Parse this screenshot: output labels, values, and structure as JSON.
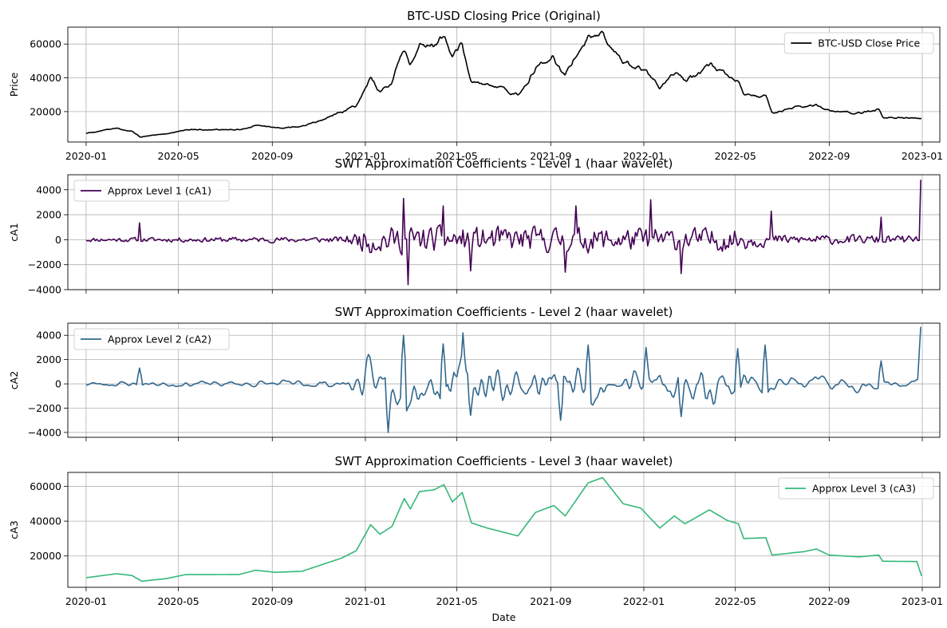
{
  "chart_data": [
    {
      "type": "line",
      "title": "BTC-USD Closing Price (Original)",
      "ylabel": "Price",
      "xlabel": "",
      "ylim": [
        2000,
        70000
      ],
      "yticks": [
        20000,
        40000,
        60000
      ],
      "grid": true,
      "legend_position": "upper-right",
      "series": [
        {
          "name": "BTC-USD Close Price",
          "color": "#000000",
          "kind": "price",
          "keypoints": [
            [
              "2020-01-01",
              7200
            ],
            [
              "2020-02-10",
              10200
            ],
            [
              "2020-03-01",
              8800
            ],
            [
              "2020-03-12",
              5000
            ],
            [
              "2020-04-15",
              7000
            ],
            [
              "2020-05-10",
              9500
            ],
            [
              "2020-06-15",
              9400
            ],
            [
              "2020-07-20",
              9300
            ],
            [
              "2020-08-10",
              11800
            ],
            [
              "2020-09-05",
              10500
            ],
            [
              "2020-10-10",
              11300
            ],
            [
              "2020-11-05",
              15000
            ],
            [
              "2020-12-01",
              19000
            ],
            [
              "2020-12-20",
              23500
            ],
            [
              "2021-01-08",
              40000
            ],
            [
              "2021-01-20",
              32000
            ],
            [
              "2021-02-05",
              38000
            ],
            [
              "2021-02-21",
              57000
            ],
            [
              "2021-03-01",
              47000
            ],
            [
              "2021-03-13",
              61000
            ],
            [
              "2021-04-01",
              59000
            ],
            [
              "2021-04-14",
              63500
            ],
            [
              "2021-04-25",
              50000
            ],
            [
              "2021-05-08",
              58000
            ],
            [
              "2021-05-20",
              37000
            ],
            [
              "2021-06-10",
              36000
            ],
            [
              "2021-07-20",
              30000
            ],
            [
              "2021-08-12",
              46000
            ],
            [
              "2021-09-05",
              51000
            ],
            [
              "2021-09-20",
              42000
            ],
            [
              "2021-10-20",
              65000
            ],
            [
              "2021-11-08",
              67000
            ],
            [
              "2021-12-05",
              49000
            ],
            [
              "2021-12-28",
              47000
            ],
            [
              "2022-01-22",
              35000
            ],
            [
              "2022-02-10",
              44000
            ],
            [
              "2022-02-24",
              38000
            ],
            [
              "2022-03-28",
              47000
            ],
            [
              "2022-04-20",
              40000
            ],
            [
              "2022-05-05",
              38000
            ],
            [
              "2022-05-12",
              29000
            ],
            [
              "2022-06-10",
              29000
            ],
            [
              "2022-06-18",
              19000
            ],
            [
              "2022-07-30",
              23500
            ],
            [
              "2022-08-15",
              24000
            ],
            [
              "2022-09-01",
              20000
            ],
            [
              "2022-10-10",
              19300
            ],
            [
              "2022-11-05",
              21000
            ],
            [
              "2022-11-10",
              16500
            ],
            [
              "2022-12-31",
              16500
            ]
          ]
        }
      ],
      "x_range": [
        "2019-12-08",
        "2023-01-24"
      ],
      "x_ticks": [
        "2020-01",
        "2020-05",
        "2020-09",
        "2021-01",
        "2021-05",
        "2021-09",
        "2022-01",
        "2022-05",
        "2022-09",
        "2023-01"
      ]
    },
    {
      "type": "line",
      "title": "SWT Approximation Coefficients - Level 1 (haar wavelet)",
      "ylabel": "cA1",
      "xlabel": "",
      "ylim": [
        -4000,
        5200
      ],
      "yticks": [
        -4000,
        -2000,
        0,
        2000,
        4000
      ],
      "grid": true,
      "legend_position": "upper-left",
      "series": [
        {
          "name": "Approx Level 1 (cA1)",
          "color": "#440154",
          "kind": "noise",
          "seed": 11,
          "noise_profile": [
            [
              "2020-01-01",
              180
            ],
            [
              "2020-12-01",
              260
            ],
            [
              "2020-12-20",
              700
            ],
            [
              "2021-01-05",
              1200
            ],
            [
              "2022-05-01",
              1000
            ],
            [
              "2022-06-20",
              450
            ],
            [
              "2022-12-25",
              350
            ]
          ],
          "spikes": [
            [
              "2020-03-12",
              1350
            ],
            [
              "2021-02-21",
              3300
            ],
            [
              "2021-02-26",
              -3600
            ],
            [
              "2021-04-14",
              2700
            ],
            [
              "2021-05-19",
              -2500
            ],
            [
              "2021-10-05",
              2700
            ],
            [
              "2021-09-20",
              -2600
            ],
            [
              "2022-01-10",
              3200
            ],
            [
              "2022-02-20",
              -2700
            ],
            [
              "2022-06-18",
              2300
            ],
            [
              "2022-11-09",
              1800
            ],
            [
              "2022-12-31",
              4800
            ]
          ]
        }
      ],
      "x_range": [
        "2019-12-08",
        "2023-01-24"
      ]
    },
    {
      "type": "line",
      "title": "SWT Approximation Coefficients - Level 2 (haar wavelet)",
      "ylabel": "cA2",
      "xlabel": "",
      "ylim": [
        -4400,
        5000
      ],
      "yticks": [
        -4000,
        -2000,
        0,
        2000,
        4000
      ],
      "grid": true,
      "legend_position": "upper-left",
      "series": [
        {
          "name": "Approx Level 2 (cA2)",
          "color": "#31688e",
          "kind": "noise",
          "seed": 23,
          "smooth": 3,
          "noise_profile": [
            [
              "2020-01-01",
              160
            ],
            [
              "2020-12-01",
              260
            ],
            [
              "2020-12-20",
              800
            ],
            [
              "2021-01-05",
              1500
            ],
            [
              "2022-05-01",
              1200
            ],
            [
              "2022-06-20",
              550
            ],
            [
              "2022-12-25",
              400
            ]
          ],
          "spikes": [
            [
              "2020-03-12",
              1300
            ],
            [
              "2021-02-21",
              4000
            ],
            [
              "2021-02-01",
              -4000
            ],
            [
              "2021-04-14",
              3300
            ],
            [
              "2021-05-10",
              4200
            ],
            [
              "2021-05-20",
              -2600
            ],
            [
              "2021-09-15",
              -3000
            ],
            [
              "2021-10-20",
              3200
            ],
            [
              "2022-01-05",
              3000
            ],
            [
              "2022-02-20",
              -2700
            ],
            [
              "2022-05-05",
              2900
            ],
            [
              "2022-06-10",
              3200
            ],
            [
              "2022-11-08",
              1900
            ],
            [
              "2022-12-31",
              4700
            ]
          ]
        }
      ],
      "x_range": [
        "2019-12-08",
        "2023-01-24"
      ]
    },
    {
      "type": "line",
      "title": "SWT Approximation Coefficients - Level 3 (haar wavelet)",
      "ylabel": "cA3",
      "xlabel": "Date",
      "ylim": [
        2000,
        68000
      ],
      "yticks": [
        20000,
        40000,
        60000
      ],
      "grid": true,
      "legend_position": "upper-right",
      "series": [
        {
          "name": "Approx Level 3 (cA3)",
          "color": "#35b779",
          "kind": "smooth-price",
          "keypoints": [
            [
              "2020-01-01",
              7500
            ],
            [
              "2020-02-10",
              9800
            ],
            [
              "2020-03-01",
              8800
            ],
            [
              "2020-03-14",
              5500
            ],
            [
              "2020-04-15",
              7000
            ],
            [
              "2020-05-10",
              9300
            ],
            [
              "2020-06-15",
              9300
            ],
            [
              "2020-07-20",
              9400
            ],
            [
              "2020-08-10",
              11800
            ],
            [
              "2020-09-05",
              10600
            ],
            [
              "2020-10-10",
              11200
            ],
            [
              "2020-11-05",
              15000
            ],
            [
              "2020-12-01",
              18800
            ],
            [
              "2020-12-20",
              23000
            ],
            [
              "2021-01-08",
              38000
            ],
            [
              "2021-01-20",
              32500
            ],
            [
              "2021-02-05",
              37000
            ],
            [
              "2021-02-21",
              53000
            ],
            [
              "2021-03-01",
              47000
            ],
            [
              "2021-03-13",
              57000
            ],
            [
              "2021-04-01",
              58000
            ],
            [
              "2021-04-14",
              61000
            ],
            [
              "2021-04-25",
              51000
            ],
            [
              "2021-05-08",
              56500
            ],
            [
              "2021-05-20",
              39000
            ],
            [
              "2021-06-10",
              36000
            ],
            [
              "2021-07-20",
              31500
            ],
            [
              "2021-08-12",
              45000
            ],
            [
              "2021-09-05",
              49000
            ],
            [
              "2021-09-20",
              43000
            ],
            [
              "2021-10-20",
              62000
            ],
            [
              "2021-11-08",
              65000
            ],
            [
              "2021-12-05",
              50000
            ],
            [
              "2021-12-28",
              47500
            ],
            [
              "2022-01-22",
              36000
            ],
            [
              "2022-02-10",
              43000
            ],
            [
              "2022-02-24",
              38500
            ],
            [
              "2022-03-28",
              46500
            ],
            [
              "2022-04-20",
              40500
            ],
            [
              "2022-05-05",
              38500
            ],
            [
              "2022-05-12",
              30000
            ],
            [
              "2022-06-10",
              30500
            ],
            [
              "2022-06-18",
              20500
            ],
            [
              "2022-07-30",
              22500
            ],
            [
              "2022-08-15",
              24000
            ],
            [
              "2022-09-01",
              20500
            ],
            [
              "2022-10-10",
              19500
            ],
            [
              "2022-11-05",
              20500
            ],
            [
              "2022-11-10",
              17000
            ],
            [
              "2022-12-25",
              16800
            ],
            [
              "2022-12-31",
              8500
            ]
          ]
        }
      ],
      "x_range": [
        "2019-12-08",
        "2023-01-24"
      ],
      "x_ticks": [
        "2020-01",
        "2020-05",
        "2020-09",
        "2021-01",
        "2021-05",
        "2021-09",
        "2022-01",
        "2022-05",
        "2022-09",
        "2023-01"
      ]
    }
  ]
}
